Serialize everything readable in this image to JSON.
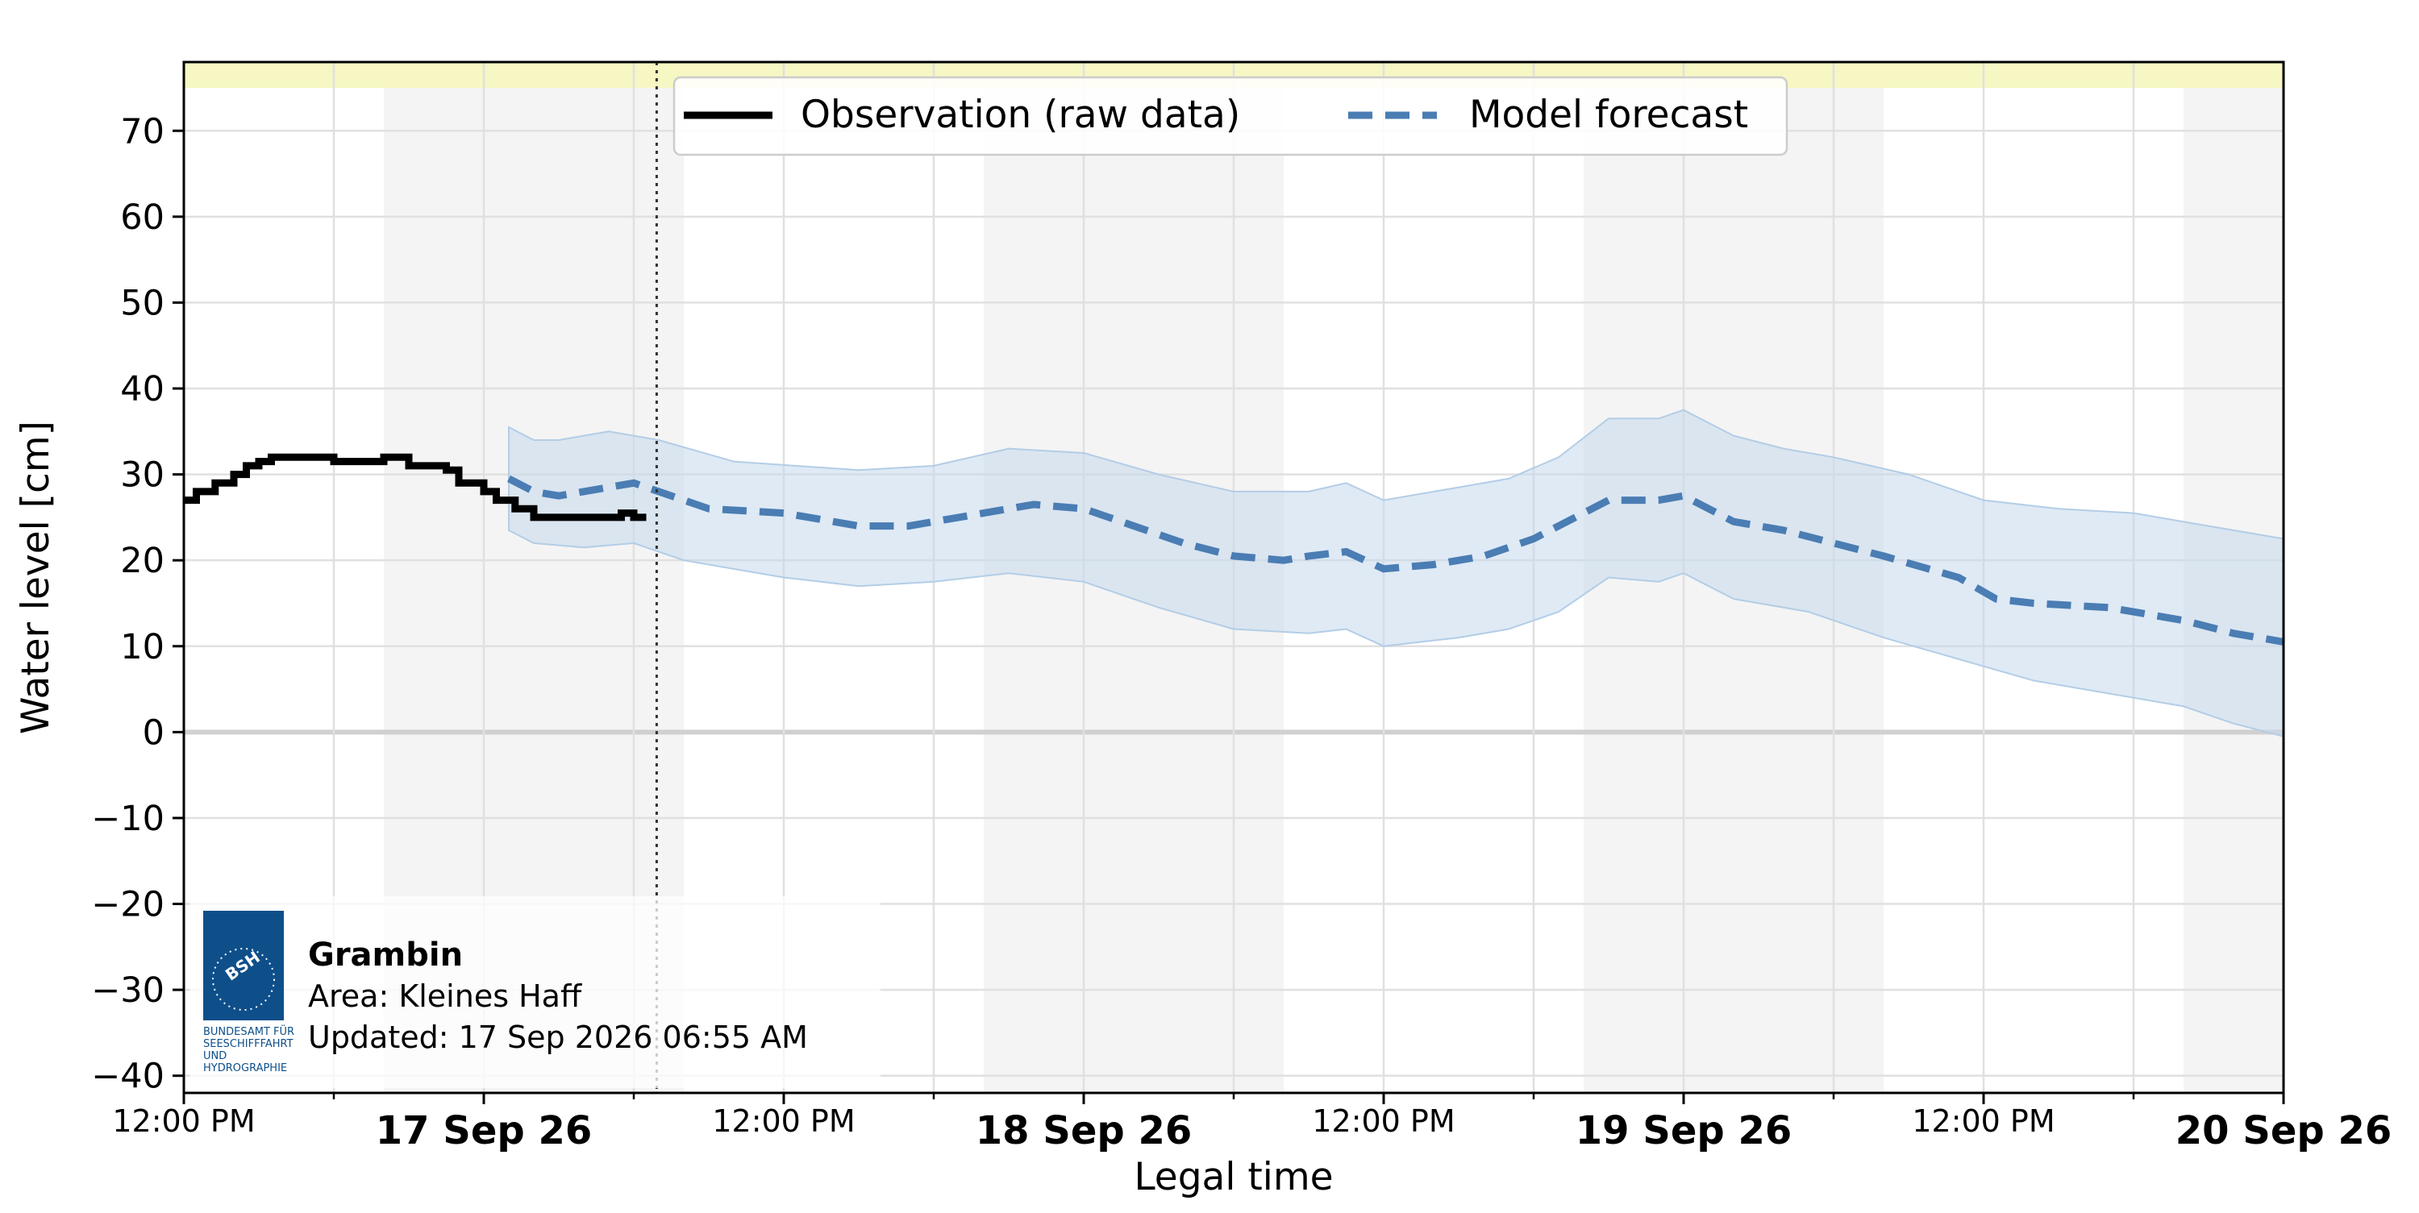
{
  "chart_data": {
    "type": "line",
    "title": "",
    "xlabel": "Legal time",
    "ylabel": "Water level [cm]",
    "x_unit": "datetime",
    "xlim": [
      "2026-09-16T12:00",
      "2026-09-20T00:00"
    ],
    "ylim": [
      -42,
      78
    ],
    "yticks": [
      -40,
      -30,
      -20,
      -10,
      0,
      10,
      20,
      30,
      40,
      50,
      60,
      70
    ],
    "ytick_labels": [
      "−40",
      "−30",
      "−20",
      "−10",
      "0",
      "10",
      "20",
      "30",
      "40",
      "50",
      "60",
      "70"
    ],
    "xticks": [
      {
        "x": "2026-09-16T12:00",
        "label": "12:00 PM",
        "major": false
      },
      {
        "x": "2026-09-17T00:00",
        "label": "17 Sep 26",
        "major": true
      },
      {
        "x": "2026-09-17T12:00",
        "label": "12:00 PM",
        "major": false
      },
      {
        "x": "2026-09-18T00:00",
        "label": "18 Sep 26",
        "major": true
      },
      {
        "x": "2026-09-18T12:00",
        "label": "12:00 PM",
        "major": false
      },
      {
        "x": "2026-09-19T00:00",
        "label": "19 Sep 26",
        "major": true
      },
      {
        "x": "2026-09-19T12:00",
        "label": "12:00 PM",
        "major": false
      },
      {
        "x": "2026-09-20T00:00",
        "label": "20 Sep 26",
        "major": true
      }
    ],
    "minor_grid_x": [
      "2026-09-16T18:00",
      "2026-09-17T06:00",
      "2026-09-17T18:00",
      "2026-09-18T06:00",
      "2026-09-18T18:00",
      "2026-09-19T06:00",
      "2026-09-19T18:00"
    ],
    "grid": true,
    "night_shading": [
      [
        "2026-09-16T20:00",
        "2026-09-17T08:00"
      ],
      [
        "2026-09-17T20:00",
        "2026-09-18T08:00"
      ],
      [
        "2026-09-18T20:00",
        "2026-09-19T08:00"
      ],
      [
        "2026-09-19T20:00",
        "2026-09-20T00:00"
      ]
    ],
    "top_band": {
      "from": 75,
      "to": 78,
      "color": "#f7f7c4"
    },
    "now_line": "2026-09-17T06:55",
    "legend": {
      "placement": "top-center",
      "entries": [
        {
          "label": "Observation (raw data)",
          "style": "solid",
          "color": "#000000"
        },
        {
          "label": "Model forecast",
          "style": "dashed",
          "color": "#4a7db3"
        }
      ]
    },
    "series": [
      {
        "name": "Observation (raw data)",
        "color": "#000000",
        "step": true,
        "points": [
          [
            "2026-09-16T12:00",
            27
          ],
          [
            "2026-09-16T12:30",
            28
          ],
          [
            "2026-09-16T13:15",
            29
          ],
          [
            "2026-09-16T14:00",
            30
          ],
          [
            "2026-09-16T14:30",
            31
          ],
          [
            "2026-09-16T15:00",
            31.5
          ],
          [
            "2026-09-16T15:30",
            32
          ],
          [
            "2026-09-16T17:00",
            32
          ],
          [
            "2026-09-16T18:00",
            31.5
          ],
          [
            "2026-09-16T19:00",
            31.5
          ],
          [
            "2026-09-16T20:00",
            32
          ],
          [
            "2026-09-16T21:00",
            31
          ],
          [
            "2026-09-16T22:30",
            30.5
          ],
          [
            "2026-09-16T23:00",
            29
          ],
          [
            "2026-09-17T00:00",
            28
          ],
          [
            "2026-09-17T00:30",
            27
          ],
          [
            "2026-09-17T01:15",
            26
          ],
          [
            "2026-09-17T02:00",
            25
          ],
          [
            "2026-09-17T05:30",
            25.5
          ],
          [
            "2026-09-17T06:00",
            25
          ],
          [
            "2026-09-17T06:30",
            25
          ]
        ]
      },
      {
        "name": "Model forecast",
        "color": "#4a7db3",
        "points": [
          [
            "2026-09-17T01:00",
            29.5
          ],
          [
            "2026-09-17T02:00",
            28
          ],
          [
            "2026-09-17T03:00",
            27.5
          ],
          [
            "2026-09-17T04:00",
            28
          ],
          [
            "2026-09-17T06:00",
            29
          ],
          [
            "2026-09-17T07:00",
            28
          ],
          [
            "2026-09-17T09:00",
            26
          ],
          [
            "2026-09-17T12:00",
            25.5
          ],
          [
            "2026-09-17T15:00",
            24
          ],
          [
            "2026-09-17T17:00",
            24
          ],
          [
            "2026-09-17T20:00",
            25.5
          ],
          [
            "2026-09-17T22:00",
            26.5
          ],
          [
            "2026-09-18T00:00",
            26
          ],
          [
            "2026-09-18T01:30",
            24.5
          ],
          [
            "2026-09-18T04:00",
            22
          ],
          [
            "2026-09-18T06:00",
            20.5
          ],
          [
            "2026-09-18T08:00",
            20
          ],
          [
            "2026-09-18T09:00",
            20.5
          ],
          [
            "2026-09-18T10:30",
            21
          ],
          [
            "2026-09-18T12:00",
            19
          ],
          [
            "2026-09-18T14:00",
            19.5
          ],
          [
            "2026-09-18T16:00",
            20.5
          ],
          [
            "2026-09-18T18:00",
            22.5
          ],
          [
            "2026-09-18T21:00",
            27
          ],
          [
            "2026-09-18T23:00",
            27
          ],
          [
            "2026-09-19T00:00",
            27.5
          ],
          [
            "2026-09-19T02:00",
            24.5
          ],
          [
            "2026-09-19T04:00",
            23.5
          ],
          [
            "2026-09-19T06:00",
            22
          ],
          [
            "2026-09-19T08:00",
            20.5
          ],
          [
            "2026-09-19T11:00",
            18
          ],
          [
            "2026-09-19T12:30",
            15.5
          ],
          [
            "2026-09-19T14:00",
            15
          ],
          [
            "2026-09-19T17:00",
            14.5
          ],
          [
            "2026-09-19T20:00",
            13
          ],
          [
            "2026-09-19T22:00",
            11.5
          ],
          [
            "2026-09-20T00:00",
            10.5
          ]
        ],
        "upper": [
          [
            "2026-09-17T01:00",
            35.5
          ],
          [
            "2026-09-17T02:00",
            34
          ],
          [
            "2026-09-17T03:00",
            34
          ],
          [
            "2026-09-17T05:00",
            35
          ],
          [
            "2026-09-17T07:00",
            34
          ],
          [
            "2026-09-17T10:00",
            31.5
          ],
          [
            "2026-09-17T15:00",
            30.5
          ],
          [
            "2026-09-17T18:00",
            31
          ],
          [
            "2026-09-17T21:00",
            33
          ],
          [
            "2026-09-18T00:00",
            32.5
          ],
          [
            "2026-09-18T03:00",
            30
          ],
          [
            "2026-09-18T06:00",
            28
          ],
          [
            "2026-09-18T09:00",
            28
          ],
          [
            "2026-09-18T10:30",
            29
          ],
          [
            "2026-09-18T12:00",
            27
          ],
          [
            "2026-09-18T15:00",
            28.5
          ],
          [
            "2026-09-18T17:00",
            29.5
          ],
          [
            "2026-09-18T19:00",
            32
          ],
          [
            "2026-09-18T21:00",
            36.5
          ],
          [
            "2026-09-18T23:00",
            36.5
          ],
          [
            "2026-09-19T00:00",
            37.5
          ],
          [
            "2026-09-19T02:00",
            34.5
          ],
          [
            "2026-09-19T04:00",
            33
          ],
          [
            "2026-09-19T06:00",
            32
          ],
          [
            "2026-09-19T09:00",
            30
          ],
          [
            "2026-09-19T12:00",
            27
          ],
          [
            "2026-09-19T15:00",
            26
          ],
          [
            "2026-09-19T18:00",
            25.5
          ],
          [
            "2026-09-19T21:00",
            24
          ],
          [
            "2026-09-20T00:00",
            22.5
          ]
        ],
        "lower": [
          [
            "2026-09-17T01:00",
            23.5
          ],
          [
            "2026-09-17T02:00",
            22
          ],
          [
            "2026-09-17T04:00",
            21.5
          ],
          [
            "2026-09-17T06:00",
            22
          ],
          [
            "2026-09-17T08:00",
            20
          ],
          [
            "2026-09-17T12:00",
            18
          ],
          [
            "2026-09-17T15:00",
            17
          ],
          [
            "2026-09-17T18:00",
            17.5
          ],
          [
            "2026-09-17T21:00",
            18.5
          ],
          [
            "2026-09-18T00:00",
            17.5
          ],
          [
            "2026-09-18T03:00",
            14.5
          ],
          [
            "2026-09-18T06:00",
            12
          ],
          [
            "2026-09-18T09:00",
            11.5
          ],
          [
            "2026-09-18T10:30",
            12
          ],
          [
            "2026-09-18T12:00",
            10
          ],
          [
            "2026-09-18T15:00",
            11
          ],
          [
            "2026-09-18T17:00",
            12
          ],
          [
            "2026-09-18T19:00",
            14
          ],
          [
            "2026-09-18T21:00",
            18
          ],
          [
            "2026-09-18T23:00",
            17.5
          ],
          [
            "2026-09-19T00:00",
            18.5
          ],
          [
            "2026-09-19T02:00",
            15.5
          ],
          [
            "2026-09-19T05:00",
            14
          ],
          [
            "2026-09-19T08:00",
            11
          ],
          [
            "2026-09-19T11:00",
            8.5
          ],
          [
            "2026-09-19T14:00",
            6
          ],
          [
            "2026-09-19T17:00",
            4.5
          ],
          [
            "2026-09-19T20:00",
            3
          ],
          [
            "2026-09-19T22:00",
            1
          ],
          [
            "2026-09-20T00:00",
            -0.5
          ]
        ]
      }
    ]
  },
  "info_box": {
    "station": "Grambin",
    "area": "Area: Kleines Haff",
    "updated": "Updated: 17 Sep 2026 06:55 AM",
    "logo_text": [
      "BUNDESAMT FÜR",
      "SEESCHIFFFAHRT",
      "UND",
      "HYDROGRAPHIE"
    ],
    "logo_mark": "BSH",
    "logo_color": "#0e4f8a"
  }
}
